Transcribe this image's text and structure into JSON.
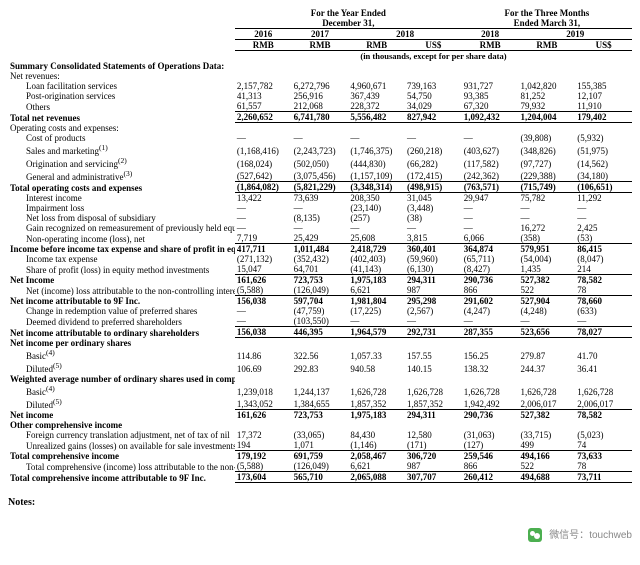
{
  "headers": {
    "year_span": "For the Year Ended",
    "year_end": "December 31,",
    "q_span": "For the Three Months",
    "q_end": "Ended March 31,",
    "y2016": "2016",
    "y2017": "2017",
    "y2018a": "2018",
    "y2018b": "2018",
    "y2019": "2019",
    "rmb": "RMB",
    "uss": "US$",
    "units": "(in thousands, except for per share data)"
  },
  "sections": {
    "summary": "Summary Consolidated Statements of Operations Data:",
    "net_rev": "Net revenues:",
    "loan_fac": "Loan facilitation services",
    "post_orig": "Post-origination services",
    "others": "Others",
    "total_net_rev": "Total net revenues",
    "op_costs": "Operating costs and expenses:",
    "cost_prod": "Cost of products",
    "sales_mkt": "Sales and marketing",
    "orig_serv": "Origination and servicing",
    "gen_admin": "General and administrative",
    "total_op": "Total operating costs and expenses",
    "int_inc": "Interest income",
    "impair": "Impairment loss",
    "net_loss_disp": "Net loss from disposal of subsidiary",
    "gain_remeas": "Gain recognized on remeasurement of previously held equity intere",
    "non_op": "Non-operating income (loss), net",
    "inc_bef_tax": "Income before income tax expense and share of profit in equity m",
    "inc_tax_exp": "Income tax expense",
    "share_profit": "Share of profit (loss) in equity method investments",
    "net_income": "Net Income",
    "nci": "Net (income) loss attributable to the non-controlling interest shareh",
    "net_inc_9f": "Net income attributable to 9F Inc.",
    "chg_redemp": "Change in redemption value of preferred shares",
    "deemed_div": "Deemed dividend to preferred shareholders",
    "net_inc_ord": "Net income attributable to ordinary shareholders",
    "net_inc_per": "Net income per ordinary shares",
    "basic": "Basic",
    "diluted": "Diluted",
    "wavg": "Weighted average number of ordinary shares used in computing n",
    "net_income2": "Net income",
    "other_comp": "Other comprehensive income",
    "fx_adj": "Foreign currency translation adjustment, net of tax of nil",
    "unreal_gains": "Unrealized gains (losses) on available for sale investments, net of ta",
    "total_comp": "Total comprehensive income",
    "total_comp_nci": "Total comprehensive (income) loss attributable to the non-controllin",
    "total_comp_9f": "Total comprehensive income attributable to 9F Inc.",
    "notes": "Notes:"
  },
  "sup": {
    "s1": "(1)",
    "s2": "(2)",
    "s3": "(3)",
    "s4": "(4)",
    "s5": "(5)"
  },
  "rows": {
    "loan_fac": [
      "2,157,782",
      "6,272,796",
      "4,960,671",
      "739,163",
      "931,727",
      "1,042,820",
      "155,385"
    ],
    "post_orig": [
      "41,313",
      "256,916",
      "367,439",
      "54,750",
      "93,385",
      "81,252",
      "12,107"
    ],
    "others": [
      "61,557",
      "212,068",
      "228,372",
      "34,029",
      "67,320",
      "79,932",
      "11,910"
    ],
    "total_net": [
      "2,260,652",
      "6,741,780",
      "5,556,482",
      "827,942",
      "1,092,432",
      "1,204,004",
      "179,402"
    ],
    "cost_prod": [
      "—",
      "—",
      "—",
      "—",
      "—",
      "(39,808)",
      "(5,932)"
    ],
    "sales_mkt": [
      "(1,168,416)",
      "(2,243,723)",
      "(1,746,375)",
      "(260,218)",
      "(403,627)",
      "(348,826)",
      "(51,975)"
    ],
    "orig_serv": [
      "(168,024)",
      "(502,050)",
      "(444,830)",
      "(66,282)",
      "(117,582)",
      "(97,727)",
      "(14,562)"
    ],
    "gen_admin": [
      "(527,642)",
      "(3,075,456)",
      "(1,157,109)",
      "(172,415)",
      "(242,362)",
      "(229,388)",
      "(34,180)"
    ],
    "total_op": [
      "(1,864,082)",
      "(5,821,229)",
      "(3,348,314)",
      "(498,915)",
      "(763,571)",
      "(715,749)",
      "(106,651)"
    ],
    "int_inc": [
      "13,422",
      "73,639",
      "208,350",
      "31,045",
      "29,947",
      "75,782",
      "11,292"
    ],
    "impair": [
      "—",
      "—",
      "(23,140)",
      "(3,448)",
      "—",
      "—",
      "—"
    ],
    "disp": [
      "—",
      "(8,135)",
      "(257)",
      "(38)",
      "—",
      "—",
      "—"
    ],
    "gain_rem": [
      "—",
      "—",
      "—",
      "—",
      "—",
      "16,272",
      "2,425"
    ],
    "non_op": [
      "7,719",
      "25,429",
      "25,608",
      "3,815",
      "6,066",
      "(358)",
      "(53)"
    ],
    "inc_bef": [
      "417,711",
      "1,011,484",
      "2,418,729",
      "360,401",
      "364,874",
      "579,951",
      "86,415"
    ],
    "inc_tax": [
      "(271,132)",
      "(352,432)",
      "(402,403)",
      "(59,960)",
      "(65,711)",
      "(54,004)",
      "(8,047)"
    ],
    "share_pl": [
      "15,047",
      "64,701",
      "(41,143)",
      "(6,130)",
      "(8,427)",
      "1,435",
      "214"
    ],
    "net_inc": [
      "161,626",
      "723,753",
      "1,975,183",
      "294,311",
      "290,736",
      "527,382",
      "78,582"
    ],
    "nci": [
      "(5,588)",
      "(126,049)",
      "6,621",
      "987",
      "866",
      "522",
      "78"
    ],
    "ni_9f": [
      "156,038",
      "597,704",
      "1,981,804",
      "295,298",
      "291,602",
      "527,904",
      "78,660"
    ],
    "chg_red": [
      "—",
      "(47,759)",
      "(17,225)",
      "(2,567)",
      "(4,247)",
      "(4,248)",
      "(633)"
    ],
    "deemed": [
      "—",
      "(103,550)",
      "—",
      "—",
      "—",
      "—",
      "—"
    ],
    "ni_ord": [
      "156,038",
      "446,395",
      "1,964,579",
      "292,731",
      "287,355",
      "523,656",
      "78,027"
    ],
    "basic": [
      "114.86",
      "322.56",
      "1,057.33",
      "157.55",
      "156.25",
      "279.87",
      "41.70"
    ],
    "diluted": [
      "106.69",
      "292.83",
      "940.58",
      "140.15",
      "138.32",
      "244.37",
      "36.41"
    ],
    "w_basic": [
      "1,239,018",
      "1,244,137",
      "1,626,728",
      "1,626,728",
      "1,626,728",
      "1,626,728",
      "1,626,728"
    ],
    "w_diluted": [
      "1,343,052",
      "1,384,655",
      "1,857,352",
      "1,857,352",
      "1,942,492",
      "2,006,017",
      "2,006,017"
    ],
    "net_inc2": [
      "161,626",
      "723,753",
      "1,975,183",
      "294,311",
      "290,736",
      "527,382",
      "78,582"
    ],
    "fx": [
      "17,372",
      "(33,065)",
      "84,430",
      "12,580",
      "(31,063)",
      "(33,715)",
      "(5,023)"
    ],
    "unreal": [
      "194",
      "1,071",
      "(1,146)",
      "(171)",
      "(127)",
      "499",
      "74"
    ],
    "tot_comp": [
      "179,192",
      "691,759",
      "2,058,467",
      "306,720",
      "259,546",
      "494,166",
      "73,633"
    ],
    "tc_nci": [
      "(5,588)",
      "(126,049)",
      "6,621",
      "987",
      "866",
      "522",
      "78"
    ],
    "tc_9f": [
      "173,604",
      "565,710",
      "2,065,088",
      "307,707",
      "260,412",
      "494,688",
      "73,711"
    ]
  },
  "footer": {
    "label": "微信号：",
    "handle": "touchweb"
  }
}
